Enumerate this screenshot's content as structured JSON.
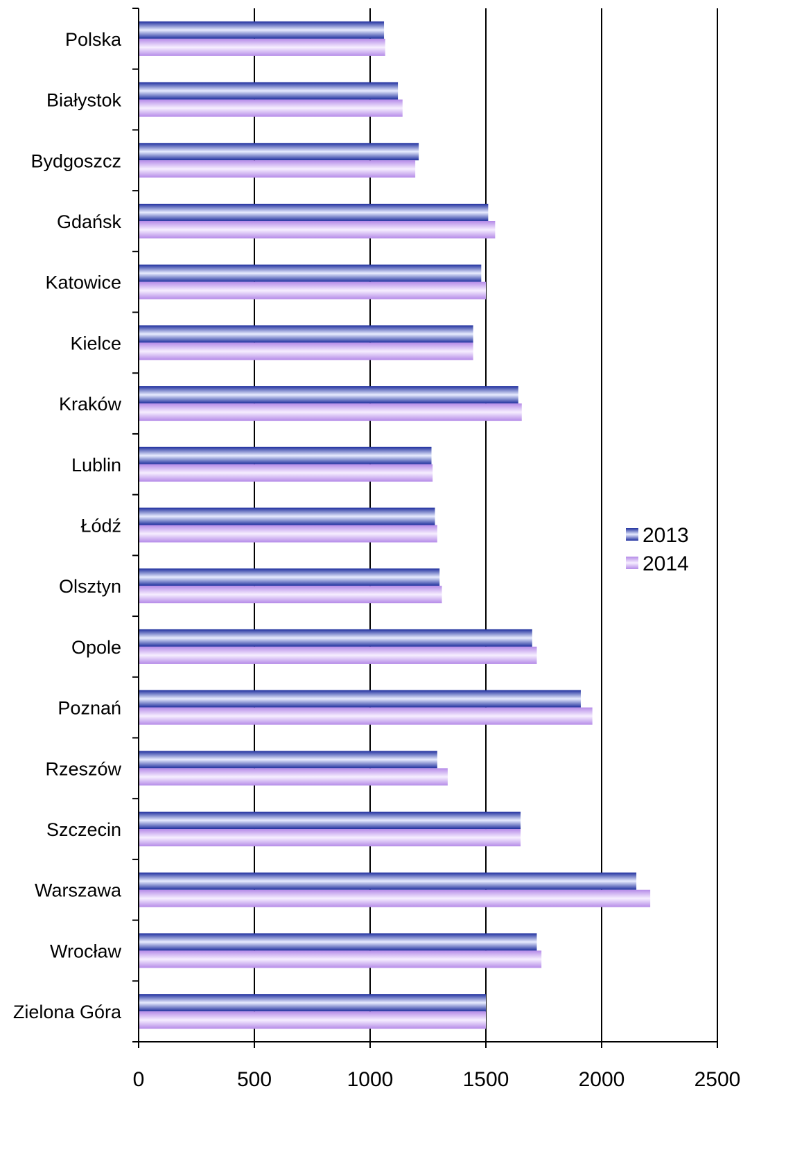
{
  "chart_data": {
    "type": "bar",
    "orientation": "horizontal",
    "categories": [
      "Polska",
      "Białystok",
      "Bydgoszcz",
      "Gdańsk",
      "Katowice",
      "Kielce",
      "Kraków",
      "Lublin",
      "Łódź",
      "Olsztyn",
      "Opole",
      "Poznań",
      "Rzeszów",
      "Szczecin",
      "Warszawa",
      "Wrocław",
      "Zielona Góra"
    ],
    "series": [
      {
        "name": "2013",
        "color": "#2a3fd0",
        "values": [
          1060,
          1120,
          1210,
          1510,
          1480,
          1445,
          1640,
          1265,
          1280,
          1300,
          1700,
          1910,
          1290,
          1650,
          2150,
          1720,
          1500
        ]
      },
      {
        "name": "2014",
        "color": "#c8a6f2",
        "values": [
          1065,
          1140,
          1195,
          1540,
          1500,
          1445,
          1655,
          1270,
          1290,
          1310,
          1720,
          1960,
          1335,
          1650,
          2210,
          1740,
          1500
        ]
      }
    ],
    "xlim": [
      0,
      2500
    ],
    "xticks": [
      0,
      500,
      1000,
      1500,
      2000,
      2500
    ],
    "grid": "vertical major",
    "legend": "right",
    "title": "",
    "xlabel": "",
    "ylabel": ""
  }
}
